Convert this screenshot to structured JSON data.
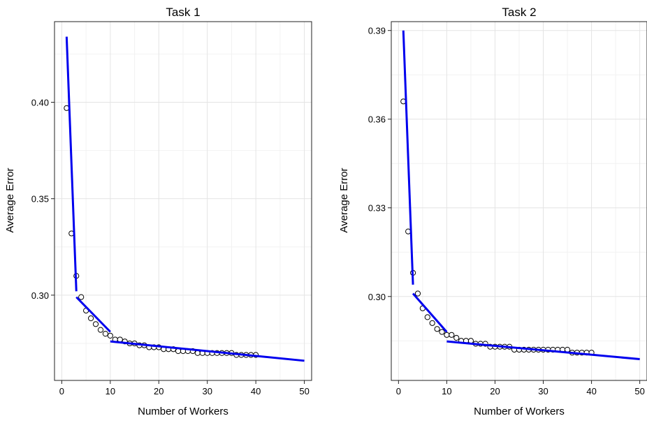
{
  "chart_data": [
    {
      "type": "scatter",
      "title": "Task 1",
      "xlabel": "Number of Workers",
      "ylabel": "Average Error",
      "xlim": [
        -1.5,
        51.5
      ],
      "ylim": [
        0.2558,
        0.4418
      ],
      "xticks": [
        0,
        10,
        20,
        30,
        40,
        50
      ],
      "xtick_labels": [
        "0",
        "10",
        "20",
        "30",
        "40",
        "50"
      ],
      "yticks": [
        0.3,
        0.35,
        0.4
      ],
      "ytick_labels": [
        "0.30",
        "0.35",
        "0.40"
      ],
      "grid": true,
      "series": [
        {
          "marker": "open-circle",
          "x": [
            1,
            2,
            3,
            4,
            5,
            6,
            7,
            8,
            9,
            10,
            11,
            12,
            13,
            14,
            15,
            16,
            17,
            18,
            19,
            20,
            21,
            22,
            23,
            24,
            25,
            26,
            27,
            28,
            29,
            30,
            31,
            32,
            33,
            34,
            35,
            36,
            37,
            38,
            39,
            40
          ],
          "y": [
            0.397,
            0.332,
            0.31,
            0.299,
            0.292,
            0.288,
            0.285,
            0.282,
            0.28,
            0.279,
            0.277,
            0.277,
            0.276,
            0.275,
            0.275,
            0.274,
            0.274,
            0.273,
            0.273,
            0.273,
            0.272,
            0.272,
            0.272,
            0.271,
            0.271,
            0.271,
            0.271,
            0.27,
            0.27,
            0.27,
            0.27,
            0.27,
            0.27,
            0.27,
            0.27,
            0.269,
            0.269,
            0.269,
            0.269,
            0.269
          ]
        }
      ],
      "segments": [
        {
          "color": "#0000ee",
          "x": [
            1,
            3
          ],
          "y": [
            0.434,
            0.302
          ]
        },
        {
          "color": "#0000ee",
          "x": [
            3,
            10
          ],
          "y": [
            0.299,
            0.281
          ]
        },
        {
          "color": "#0000ee",
          "x": [
            10,
            50
          ],
          "y": [
            0.276,
            0.266
          ]
        }
      ]
    },
    {
      "type": "scatter",
      "title": "Task 2",
      "xlabel": "Number of Workers",
      "ylabel": "Average Error",
      "xlim": [
        -1.5,
        51.5
      ],
      "ylim": [
        0.2716,
        0.393
      ],
      "xticks": [
        0,
        10,
        20,
        30,
        40,
        50
      ],
      "xtick_labels": [
        "0",
        "10",
        "20",
        "30",
        "40",
        "50"
      ],
      "yticks": [
        0.3,
        0.33,
        0.36,
        0.39
      ],
      "ytick_labels": [
        "0.30",
        "0.33",
        "0.36",
        "0.39"
      ],
      "grid": true,
      "series": [
        {
          "marker": "open-circle",
          "x": [
            1,
            2,
            3,
            4,
            5,
            6,
            7,
            8,
            9,
            10,
            11,
            12,
            13,
            14,
            15,
            16,
            17,
            18,
            19,
            20,
            21,
            22,
            23,
            24,
            25,
            26,
            27,
            28,
            29,
            30,
            31,
            32,
            33,
            34,
            35,
            36,
            37,
            38,
            39,
            40
          ],
          "y": [
            0.366,
            0.322,
            0.308,
            0.301,
            0.296,
            0.293,
            0.291,
            0.289,
            0.288,
            0.287,
            0.287,
            0.286,
            0.285,
            0.285,
            0.285,
            0.284,
            0.284,
            0.284,
            0.283,
            0.283,
            0.283,
            0.283,
            0.283,
            0.282,
            0.282,
            0.282,
            0.282,
            0.282,
            0.282,
            0.282,
            0.282,
            0.282,
            0.282,
            0.282,
            0.282,
            0.281,
            0.281,
            0.281,
            0.281,
            0.281
          ]
        }
      ],
      "segments": [
        {
          "color": "#0000ee",
          "x": [
            1,
            3
          ],
          "y": [
            0.39,
            0.304
          ]
        },
        {
          "color": "#0000ee",
          "x": [
            3,
            10
          ],
          "y": [
            0.301,
            0.288
          ]
        },
        {
          "color": "#0000ee",
          "x": [
            10,
            50
          ],
          "y": [
            0.2848,
            0.2788
          ]
        }
      ]
    }
  ]
}
